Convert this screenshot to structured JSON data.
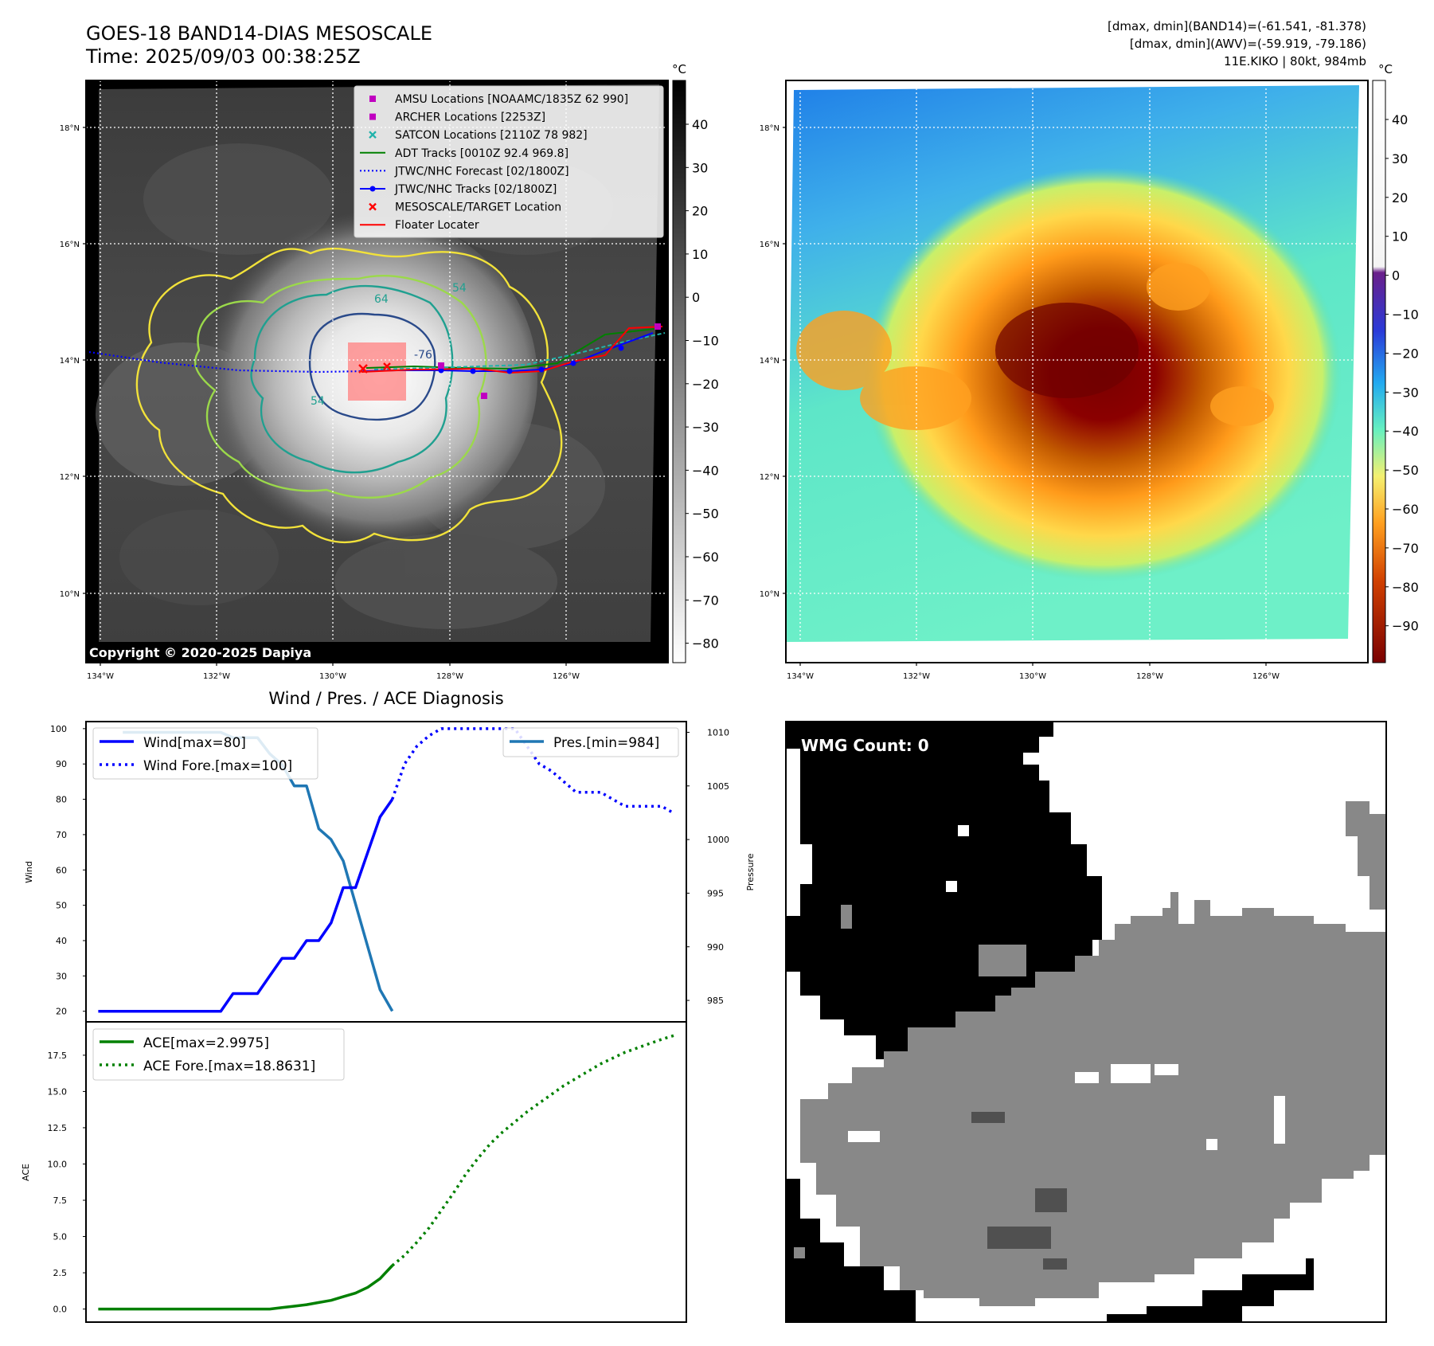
{
  "header": {
    "title_line1": "GOES-18 BAND14-DIAS MESOSCALE",
    "title_line2": "Time: 2025/09/03 00:38:25Z",
    "right_line1": "[dmax, dmin](BAND14)=(-61.541, -81.378)",
    "right_line2": "[dmax, dmin](AWV)=(-59.919, -79.186)",
    "right_line3": "11E.KIKO | 80kt, 984mb"
  },
  "maps": {
    "lat_ticks": [
      "18°N",
      "16°N",
      "14°N",
      "12°N",
      "10°N"
    ],
    "lon_ticks": [
      "134°W",
      "132°W",
      "130°W",
      "128°W",
      "126°W"
    ],
    "copyright": "Copyright © 2020-2025 Dapiya",
    "unit": "°C",
    "ir_colorbar_ticks": [
      "40",
      "30",
      "20",
      "10",
      "0",
      "−10",
      "−20",
      "−30",
      "−40",
      "−50",
      "−60",
      "−70",
      "−80"
    ],
    "awv_colorbar_ticks": [
      "40",
      "30",
      "20",
      "10",
      "0",
      "−10",
      "−20",
      "−30",
      "−40",
      "−50",
      "−60",
      "−70",
      "−80",
      "−90"
    ],
    "contour_labels": [
      "64",
      "54",
      "-76",
      "54"
    ],
    "legend": [
      {
        "label": "AMSU Locations [NOAAMC/1835Z 62 990]",
        "color": "#c000c0",
        "marker": "square"
      },
      {
        "label": "ARCHER Locations [2253Z]",
        "color": "#c000c0",
        "marker": "square"
      },
      {
        "label": "SATCON Locations [2110Z 78 982]",
        "color": "#20b2aa",
        "marker": "x"
      },
      {
        "label": "ADT Tracks [0010Z 92.4 969.8]",
        "color": "#008000",
        "marker": "line"
      },
      {
        "label": "JTWC/NHC Forecast [02/1800Z]",
        "color": "#0000ff",
        "marker": "dotted"
      },
      {
        "label": "JTWC/NHC Tracks [02/1800Z]",
        "color": "#0000ff",
        "marker": "line-dot"
      },
      {
        "label": "MESOSCALE/TARGET Location",
        "color": "#ff0000",
        "marker": "x"
      },
      {
        "label": "Floater Locater",
        "color": "#ff0000",
        "marker": "line"
      }
    ]
  },
  "wmg": {
    "label": "WMG Count: 0"
  },
  "chart_data": [
    {
      "type": "line",
      "title": "Wind / Pres. / ACE Diagnosis",
      "ylabel": "Wind",
      "ylabel_right": "Pressure",
      "ylim": [
        17,
        102
      ],
      "ylim_right": [
        983,
        1011
      ],
      "yticks": [
        20,
        30,
        40,
        50,
        60,
        70,
        80,
        90,
        100
      ],
      "yticks_right": [
        985,
        990,
        995,
        1000,
        1005,
        1010
      ],
      "series": [
        {
          "name": "Wind[max=80]",
          "color": "#0000ff",
          "style": "solid",
          "x": [
            0,
            1,
            2,
            3,
            4,
            5,
            6,
            7,
            8,
            9,
            10,
            11,
            12,
            13,
            14,
            15,
            16,
            17,
            18,
            19,
            20,
            21,
            22,
            23,
            24
          ],
          "values": [
            20,
            20,
            20,
            20,
            20,
            20,
            20,
            20,
            20,
            20,
            20,
            25,
            25,
            25,
            30,
            35,
            35,
            40,
            40,
            45,
            55,
            55,
            65,
            75,
            80
          ]
        },
        {
          "name": "Wind Fore.[max=100]",
          "color": "#0000ff",
          "style": "dotted",
          "x": [
            24,
            25,
            26,
            27,
            28,
            29,
            30,
            31,
            32,
            33,
            34,
            35,
            36,
            37,
            38,
            39,
            40,
            41,
            42,
            43,
            44,
            45,
            46,
            47
          ],
          "values": [
            80,
            90,
            95,
            98,
            100,
            100,
            100,
            100,
            100,
            100,
            100,
            95,
            90,
            88,
            85,
            82,
            82,
            82,
            80,
            78,
            78,
            78,
            78,
            76
          ]
        },
        {
          "name": "Pres.[min=984]",
          "color": "#1f77b4",
          "style": "solid",
          "axis": "right",
          "x": [
            2,
            3,
            4,
            5,
            6,
            7,
            8,
            9,
            10,
            11,
            12,
            13,
            14,
            15,
            16,
            17,
            18,
            19,
            20,
            21,
            22,
            23,
            24
          ],
          "values": [
            1010,
            1010,
            1010,
            1010,
            1010,
            1010,
            1010,
            1010,
            1010,
            1009.5,
            1009.5,
            1009.5,
            1008,
            1007,
            1005,
            1005,
            1001,
            1000,
            998,
            994,
            990,
            986,
            984
          ]
        }
      ]
    },
    {
      "type": "line",
      "ylabel": "ACE",
      "ylim": [
        -0.9,
        19.8
      ],
      "yticks": [
        0.0,
        2.5,
        5.0,
        7.5,
        10.0,
        12.5,
        15.0,
        17.5
      ],
      "series": [
        {
          "name": "ACE[max=2.9975]",
          "color": "#008000",
          "style": "solid",
          "x": [
            0,
            1,
            2,
            3,
            4,
            5,
            6,
            7,
            8,
            9,
            10,
            11,
            12,
            13,
            14,
            15,
            16,
            17,
            18,
            19,
            20,
            21,
            22,
            23,
            24
          ],
          "values": [
            0,
            0,
            0,
            0,
            0,
            0,
            0,
            0,
            0,
            0,
            0,
            0,
            0,
            0,
            0,
            0.1,
            0.2,
            0.3,
            0.45,
            0.6,
            0.85,
            1.1,
            1.5,
            2.1,
            2.9975
          ]
        },
        {
          "name": "ACE Fore.[max=18.8631]",
          "color": "#008000",
          "style": "dotted",
          "x": [
            24,
            25,
            26,
            27,
            28,
            29,
            30,
            31,
            32,
            33,
            34,
            35,
            36,
            37,
            38,
            39,
            40,
            41,
            42,
            43,
            44,
            45,
            46,
            47
          ],
          "values": [
            2.9975,
            3.7,
            4.6,
            5.6,
            6.8,
            8.0,
            9.3,
            10.4,
            11.4,
            12.2,
            12.9,
            13.6,
            14.2,
            14.8,
            15.4,
            15.9,
            16.4,
            16.9,
            17.3,
            17.7,
            18.0,
            18.3,
            18.6,
            18.8631
          ]
        }
      ]
    }
  ]
}
